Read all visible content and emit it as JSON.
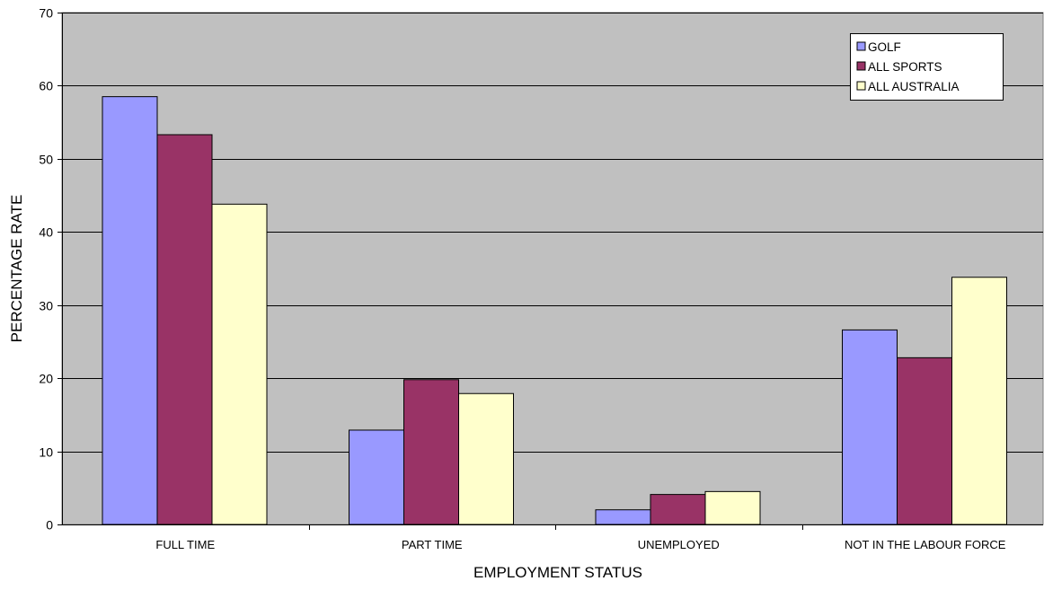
{
  "chart_data": {
    "type": "bar",
    "title": "",
    "xlabel": "EMPLOYMENT STATUS",
    "ylabel": "PERCENTAGE RATE",
    "categories": [
      "FULL TIME",
      "PART TIME",
      "UNEMPLOYED",
      "NOT IN THE LABOUR FORCE"
    ],
    "series": [
      {
        "name": "GOLF",
        "color": "#9999ff",
        "values": [
          58.5,
          12.9,
          2.0,
          26.6
        ]
      },
      {
        "name": "ALL SPORTS",
        "color": "#993366",
        "values": [
          53.3,
          19.8,
          4.1,
          22.8
        ]
      },
      {
        "name": "ALL AUSTRALIA",
        "color": "#ffffcc",
        "values": [
          43.8,
          17.9,
          4.5,
          33.8
        ]
      }
    ],
    "ylim": [
      0,
      70
    ],
    "yticks": [
      "0",
      "10",
      "20",
      "30",
      "40",
      "50",
      "60",
      "70"
    ],
    "grid": true,
    "plot_background": "#c0c0c0",
    "legend": {
      "position": "top-right"
    }
  }
}
